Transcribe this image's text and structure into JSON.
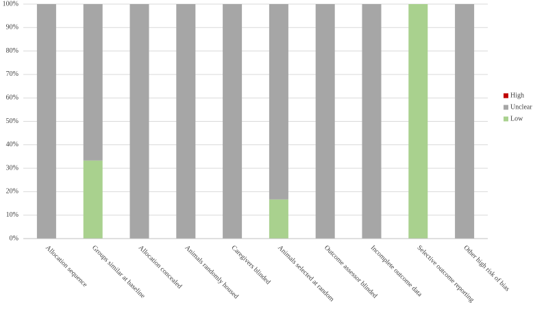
{
  "chart_data": {
    "type": "stacked-bar",
    "categories": [
      "Allocation sequence",
      "Groups similar at baseline",
      "Allocation concealed",
      "Animals randomly housed",
      "Caregivers blinded",
      "Animals selected at random",
      "Outcome assessor blinded",
      "Incomplete outcome data",
      "Selective outcome reporting",
      "Other high risk of bias"
    ],
    "series": [
      {
        "name": "Low",
        "color": "#a9d18e",
        "values": [
          0,
          33.3,
          0,
          0,
          0,
          16.7,
          0,
          0,
          100,
          0
        ]
      },
      {
        "name": "Unclear",
        "color": "#a6a6a6",
        "values": [
          100,
          66.7,
          100,
          100,
          100,
          83.3,
          100,
          100,
          0,
          100
        ]
      },
      {
        "name": "High",
        "color": "#c00000",
        "values": [
          0,
          0,
          0,
          0,
          0,
          0,
          0,
          0,
          0,
          0
        ]
      }
    ],
    "ylim": [
      0,
      100
    ],
    "yticks": [
      {
        "value": 0,
        "label": "0%"
      },
      {
        "value": 10,
        "label": "10%"
      },
      {
        "value": 20,
        "label": "20%"
      },
      {
        "value": 30,
        "label": "30%"
      },
      {
        "value": 40,
        "label": "40%"
      },
      {
        "value": 50,
        "label": "50%"
      },
      {
        "value": 60,
        "label": "60%"
      },
      {
        "value": 70,
        "label": "70%"
      },
      {
        "value": 80,
        "label": "80%"
      },
      {
        "value": 90,
        "label": "90%"
      },
      {
        "value": 100,
        "label": "100%"
      }
    ],
    "grid": true,
    "legend": "right"
  }
}
